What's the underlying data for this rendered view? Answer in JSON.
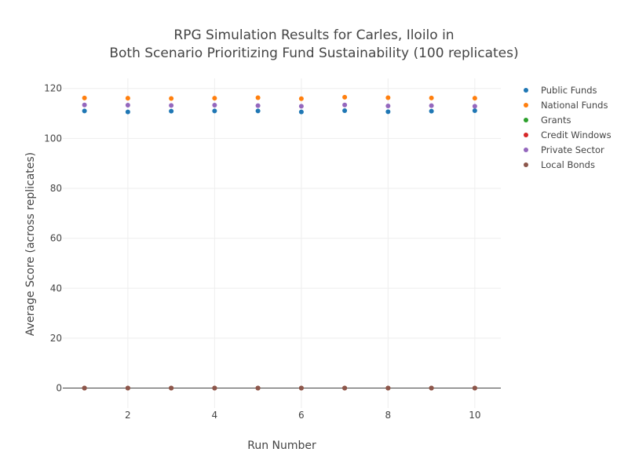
{
  "chart_data": {
    "type": "scatter",
    "title_line1": "RPG Simulation Results for Carles, Iloilo in",
    "title_line2": "Both Scenario Prioritizing Fund Sustainability (100 replicates)",
    "xlabel": "Run Number",
    "ylabel": "Average Score (across replicates)",
    "xlim": [
      0.5,
      10.6
    ],
    "ylim": [
      -8,
      124
    ],
    "x_ticks": [
      2,
      4,
      6,
      8,
      10
    ],
    "y_ticks": [
      0,
      20,
      40,
      60,
      80,
      100,
      120
    ],
    "x_tick_labels": [
      "2",
      "4",
      "6",
      "8",
      "10"
    ],
    "y_tick_labels": [
      "0",
      "20",
      "40",
      "60",
      "80",
      "100",
      "120"
    ],
    "grid": true,
    "legend_position": "top-right",
    "x": [
      1,
      2,
      3,
      4,
      5,
      6,
      7,
      8,
      9,
      10
    ],
    "series": [
      {
        "name": "Public Funds",
        "color": "#1f77b4",
        "values": [
          111.0,
          110.6,
          110.9,
          111.0,
          111.0,
          110.6,
          111.1,
          110.7,
          110.9,
          111.1
        ]
      },
      {
        "name": "National Funds",
        "color": "#ff7f0e",
        "values": [
          116.2,
          116.1,
          116.0,
          116.1,
          116.3,
          115.9,
          116.5,
          116.3,
          116.2,
          116.1
        ]
      },
      {
        "name": "Grants",
        "color": "#2ca02c",
        "values": [
          0,
          0,
          0,
          0,
          0,
          0,
          0,
          0,
          0,
          0
        ]
      },
      {
        "name": "Credit Windows",
        "color": "#d62728",
        "values": [
          0,
          0,
          0,
          0,
          0,
          0,
          0,
          0,
          0,
          0
        ]
      },
      {
        "name": "Private Sector",
        "color": "#9467bd",
        "values": [
          113.4,
          113.3,
          113.2,
          113.3,
          113.1,
          112.9,
          113.4,
          113.0,
          113.1,
          112.9
        ]
      },
      {
        "name": "Local Bonds",
        "color": "#8c564b",
        "values": [
          0,
          0,
          0,
          0,
          0,
          0,
          0,
          0,
          0,
          0
        ]
      }
    ]
  }
}
